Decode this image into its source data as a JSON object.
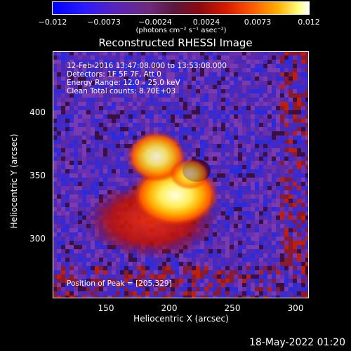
{
  "colorbar": {
    "ticks": [
      "−0.012",
      "−0.0073",
      "−0.0024",
      "0.0024",
      "0.0073",
      "0.012"
    ],
    "units": "(photons cm⁻² s⁻¹ asec⁻²)",
    "colors": [
      "#0000ff",
      "#6f2a7a",
      "#8a0a10",
      "#ff5a00",
      "#ffff80",
      "#ffffff"
    ]
  },
  "title": "Reconstructed RHESSI Image",
  "info": {
    "time": "12-Feb-2016 13:47:08.000 to 13:53:08.000",
    "detectors": "Detectors: 1F 5F 7F, Att 0",
    "energy": "Energy Range: 12.0 – 25.0 keV",
    "clean": "Clean    Total counts: 8.70E+03",
    "peak": "Position of Peak = [205,329]"
  },
  "axes": {
    "xlabel": "Heliocentric X (arcsec)",
    "ylabel": "Heliocentric Y (arcsec)",
    "xticks": [
      "150",
      "200",
      "250",
      "300"
    ],
    "yticks": [
      "400",
      "350",
      "300"
    ],
    "xlim": [
      110,
      300
    ],
    "ylim": [
      250,
      430
    ]
  },
  "footer": "18-May-2022 01:20"
}
